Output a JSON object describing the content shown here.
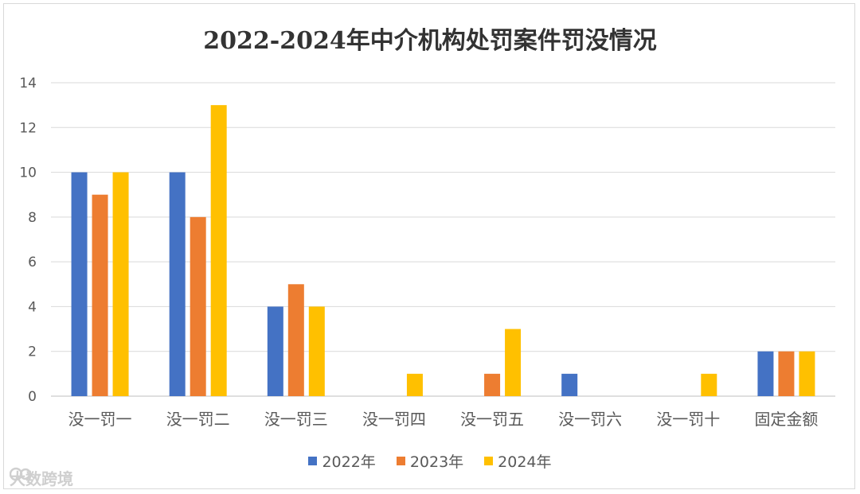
{
  "chart_data": {
    "type": "bar",
    "title": "2022-2024年中介机构处罚案件罚没情况",
    "categories": [
      "没一罚一",
      "没一罚二",
      "没一罚三",
      "没一罚四",
      "没一罚五",
      "没一罚六",
      "没一罚十",
      "固定金额"
    ],
    "series": [
      {
        "name": "2022年",
        "color": "#4472c4",
        "values": [
          10,
          10,
          4,
          0,
          0,
          1,
          0,
          2
        ]
      },
      {
        "name": "2023年",
        "color": "#ed7d31",
        "values": [
          9,
          8,
          5,
          0,
          1,
          0,
          0,
          2
        ]
      },
      {
        "name": "2024年",
        "color": "#ffc000",
        "values": [
          10,
          13,
          4,
          1,
          3,
          0,
          1,
          2
        ]
      }
    ],
    "ylim": [
      0,
      14
    ],
    "yticks": [
      0,
      2,
      4,
      6,
      8,
      10,
      12,
      14
    ],
    "grid": true,
    "legend_position": "bottom"
  },
  "watermark": {
    "text": "大数跨境"
  }
}
